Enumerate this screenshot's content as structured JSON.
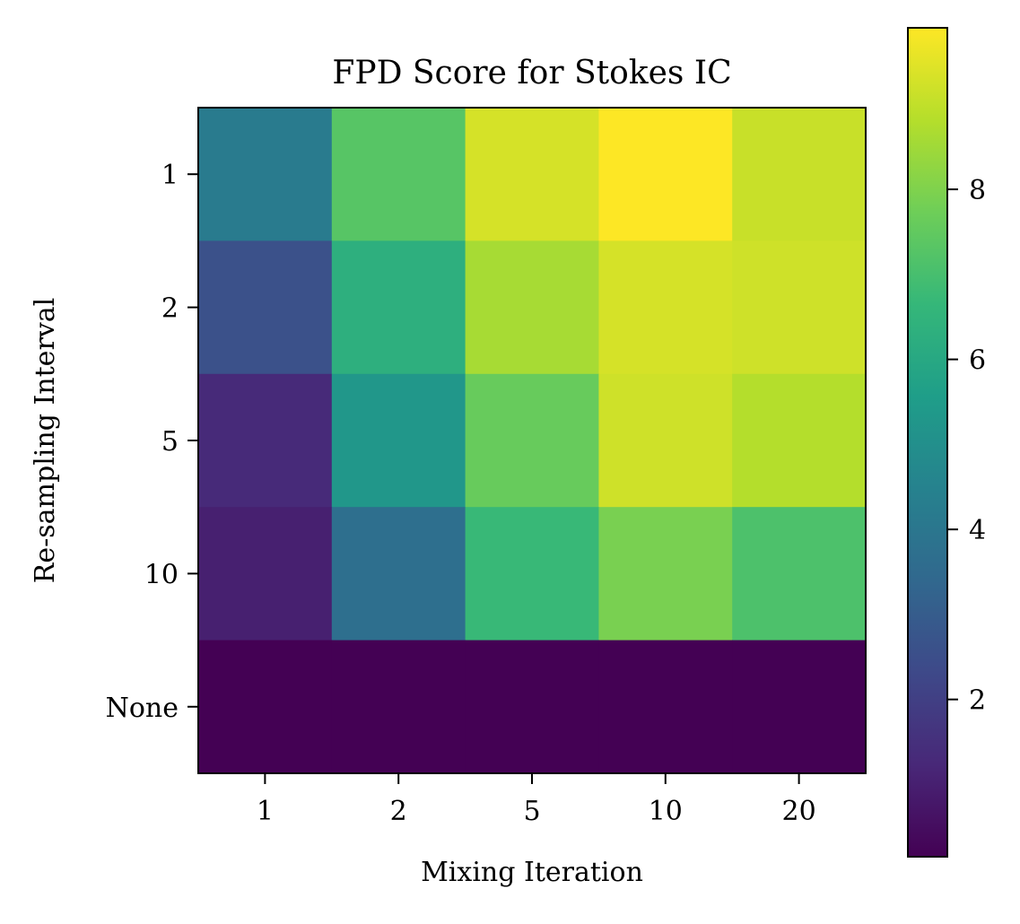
{
  "chart_data": {
    "type": "heatmap",
    "title": "FPD Score for Stokes IC",
    "xlabel": "Mixing Iteration",
    "ylabel": "Re-sampling Interval",
    "x_categories": [
      "1",
      "2",
      "5",
      "10",
      "20"
    ],
    "y_categories": [
      "1",
      "2",
      "5",
      "10",
      "None"
    ],
    "values": [
      [
        4.2,
        7.3,
        9.3,
        9.9,
        9.1
      ],
      [
        2.6,
        6.3,
        8.6,
        9.3,
        9.2
      ],
      [
        1.3,
        5.3,
        7.6,
        9.2,
        8.8
      ],
      [
        1.0,
        3.7,
        6.7,
        7.9,
        7.1
      ],
      [
        0.15,
        0.15,
        0.15,
        0.15,
        0.15
      ]
    ],
    "colormap": "viridis",
    "colorbar": {
      "range": [
        0.15,
        9.9
      ],
      "ticks": [
        2,
        4,
        6,
        8
      ]
    },
    "grid": false
  }
}
